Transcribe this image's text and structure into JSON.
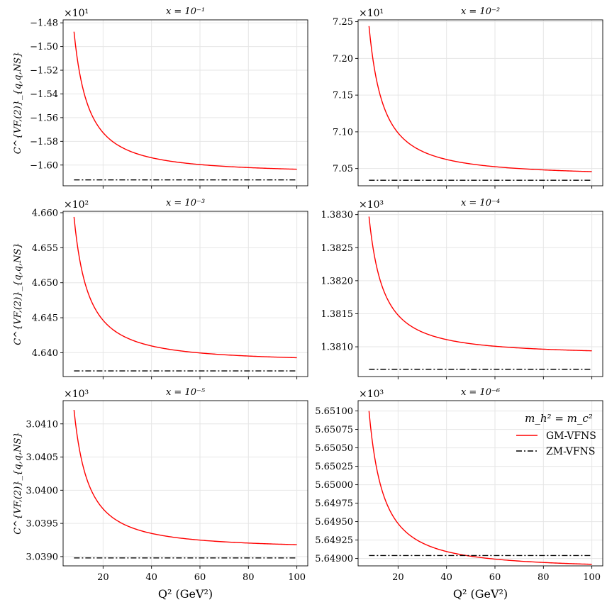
{
  "chart_data": [
    {
      "type": "line",
      "title": "x = 10⁻¹",
      "ylabel": "C^{VF,(2)}_{q,q,NS}",
      "xlabel": "",
      "offset_label": "×10¹",
      "ylim": [
        -1.6175,
        -1.4775
      ],
      "yticks": [
        -1.48,
        -1.5,
        -1.52,
        -1.54,
        -1.56,
        -1.58,
        -1.6
      ],
      "ytick_labels": [
        "−1.48",
        "−1.50",
        "−1.52",
        "−1.54",
        "−1.56",
        "−1.58",
        "−1.60"
      ],
      "xlim": [
        3.5,
        104.5
      ],
      "xticks": [
        20,
        40,
        60,
        80,
        100
      ],
      "xtick_labels": [],
      "grid": true,
      "series": [
        {
          "name": "GM-VFNS",
          "color": "#ff0000",
          "style": "solid",
          "asymptote": -1.6075,
          "amplitude": 0.12,
          "gamma": 1.35
        },
        {
          "name": "ZM-VFNS",
          "color": "#000000",
          "style": "dashdot",
          "constant": -1.6125
        }
      ]
    },
    {
      "type": "line",
      "title": "x = 10⁻²",
      "ylabel": "",
      "xlabel": "",
      "offset_label": "×10¹",
      "ylim": [
        7.0265,
        7.2525
      ],
      "yticks": [
        7.05,
        7.1,
        7.15,
        7.2,
        7.25
      ],
      "ytick_labels": [
        "7.05",
        "7.10",
        "7.15",
        "7.20",
        "7.25"
      ],
      "xlim": [
        3.5,
        104.5
      ],
      "xticks": [
        20,
        40,
        60,
        80,
        100
      ],
      "xtick_labels": [],
      "grid": true,
      "series": [
        {
          "name": "GM-VFNS",
          "color": "#ff0000",
          "style": "solid",
          "asymptote": 7.039,
          "amplitude": 0.205,
          "gamma": 1.35
        },
        {
          "name": "ZM-VFNS",
          "color": "#000000",
          "style": "dashdot",
          "constant": 7.034
        }
      ]
    },
    {
      "type": "line",
      "title": "x = 10⁻³",
      "ylabel": "C^{VF,(2)}_{q,q,NS}",
      "xlabel": "",
      "offset_label": "×10²",
      "ylim": [
        4.6366,
        4.6602
      ],
      "yticks": [
        4.64,
        4.645,
        4.65,
        4.655,
        4.66
      ],
      "ytick_labels": [
        "4.640",
        "4.645",
        "4.650",
        "4.655",
        "4.660"
      ],
      "xlim": [
        3.5,
        104.5
      ],
      "xticks": [
        20,
        40,
        60,
        80,
        100
      ],
      "xtick_labels": [],
      "grid": true,
      "series": [
        {
          "name": "GM-VFNS",
          "color": "#ff0000",
          "style": "solid",
          "asymptote": 4.6386,
          "amplitude": 0.0208,
          "gamma": 1.35
        },
        {
          "name": "ZM-VFNS",
          "color": "#000000",
          "style": "dashdot",
          "constant": 4.6374
        }
      ]
    },
    {
      "type": "line",
      "title": "x = 10⁻⁴",
      "ylabel": "",
      "xlabel": "",
      "offset_label": "×10³",
      "ylim": [
        1.38055,
        1.38305
      ],
      "yticks": [
        1.381,
        1.3815,
        1.382,
        1.3825,
        1.383
      ],
      "ytick_labels": [
        "1.3810",
        "1.3815",
        "1.3820",
        "1.3825",
        "1.3830"
      ],
      "xlim": [
        3.5,
        104.5
      ],
      "xticks": [
        20,
        40,
        60,
        80,
        100
      ],
      "xtick_labels": [],
      "grid": true,
      "series": [
        {
          "name": "GM-VFNS",
          "color": "#ff0000",
          "style": "solid",
          "asymptote": 1.38087,
          "amplitude": 0.0021,
          "gamma": 1.35
        },
        {
          "name": "ZM-VFNS",
          "color": "#000000",
          "style": "dashdot",
          "constant": 1.38066
        }
      ]
    },
    {
      "type": "line",
      "title": "x = 10⁻⁵",
      "ylabel": "C^{VF,(2)}_{q,q,NS}",
      "xlabel": "Q² (GeV²)",
      "offset_label": "×10³",
      "ylim": [
        3.03886,
        3.04135
      ],
      "yticks": [
        3.039,
        3.0395,
        3.04,
        3.0405,
        3.041
      ],
      "ytick_labels": [
        "3.0390",
        "3.0395",
        "3.0400",
        "3.0405",
        "3.0410"
      ],
      "xlim": [
        3.5,
        104.5
      ],
      "xticks": [
        20,
        40,
        60,
        80,
        100
      ],
      "xtick_labels": [
        "20",
        "40",
        "60",
        "80",
        "100"
      ],
      "grid": true,
      "series": [
        {
          "name": "GM-VFNS",
          "color": "#ff0000",
          "style": "solid",
          "asymptote": 3.03911,
          "amplitude": 0.0021,
          "gamma": 1.35
        },
        {
          "name": "ZM-VFNS",
          "color": "#000000",
          "style": "dashdot",
          "constant": 3.03898
        }
      ]
    },
    {
      "type": "line",
      "title": "x = 10⁻⁶",
      "ylabel": "",
      "xlabel": "Q² (GeV²)",
      "offset_label": "×10³",
      "ylim": [
        5.6489,
        5.65114
      ],
      "yticks": [
        5.649,
        5.64925,
        5.6495,
        5.64975,
        5.65,
        5.65025,
        5.6505,
        5.65075,
        5.651
      ],
      "ytick_labels": [
        "5.64900",
        "5.64925",
        "5.64950",
        "5.64975",
        "5.65000",
        "5.65025",
        "5.65050",
        "5.65075",
        "5.65100"
      ],
      "xlim": [
        3.5,
        104.5
      ],
      "xticks": [
        20,
        40,
        60,
        80,
        100
      ],
      "xtick_labels": [
        "20",
        "40",
        "60",
        "80",
        "100"
      ],
      "grid": true,
      "legend": {
        "title": "m_h² = m_c²",
        "placement": "top-right",
        "entries": [
          "GM-VFNS",
          "ZM-VFNS"
        ]
      },
      "series": [
        {
          "name": "GM-VFNS",
          "color": "#ff0000",
          "style": "solid",
          "asymptote": 5.64885,
          "amplitude": 0.00215,
          "gamma": 1.35
        },
        {
          "name": "ZM-VFNS",
          "color": "#000000",
          "style": "dashdot",
          "constant": 5.64904
        }
      ]
    }
  ],
  "x_range_data": {
    "start": 8,
    "end": 100
  }
}
